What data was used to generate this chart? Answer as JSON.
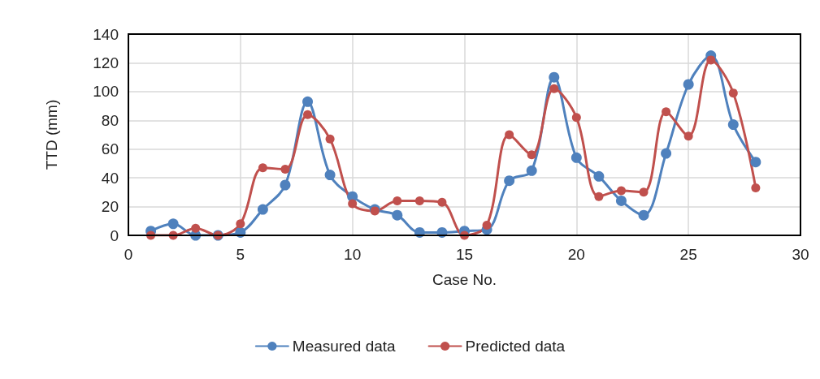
{
  "chart_data": {
    "type": "line",
    "xlabel": "Case No.",
    "ylabel": "TTD (mm)",
    "x": [
      1,
      2,
      3,
      4,
      5,
      6,
      7,
      8,
      9,
      10,
      11,
      12,
      13,
      14,
      15,
      16,
      17,
      18,
      19,
      20,
      21,
      22,
      23,
      24,
      25,
      26,
      27,
      28
    ],
    "series": [
      {
        "name": "Measured data",
        "color": "#4f81bd",
        "values": [
          3,
          8,
          0,
          0,
          2,
          18,
          35,
          93,
          42,
          27,
          18,
          14,
          2,
          2,
          3,
          4,
          38,
          45,
          110,
          54,
          41,
          24,
          14,
          57,
          105,
          125,
          77,
          51
        ]
      },
      {
        "name": "Predicted data",
        "color": "#c0504d",
        "values": [
          0,
          0,
          5,
          0,
          8,
          47,
          46,
          84,
          67,
          22,
          17,
          24,
          24,
          23,
          0,
          7,
          70,
          56,
          102,
          82,
          27,
          31,
          30,
          86,
          69,
          122,
          99,
          33
        ]
      }
    ],
    "xlim": [
      0,
      30
    ],
    "xticks": [
      0,
      5,
      10,
      15,
      20,
      25,
      30
    ],
    "ylim": [
      0,
      140
    ],
    "yticks": [
      0,
      20,
      40,
      60,
      80,
      100,
      120,
      140
    ],
    "grid": true,
    "legend": "bottom",
    "marker": "circle",
    "line_style": "solid"
  }
}
